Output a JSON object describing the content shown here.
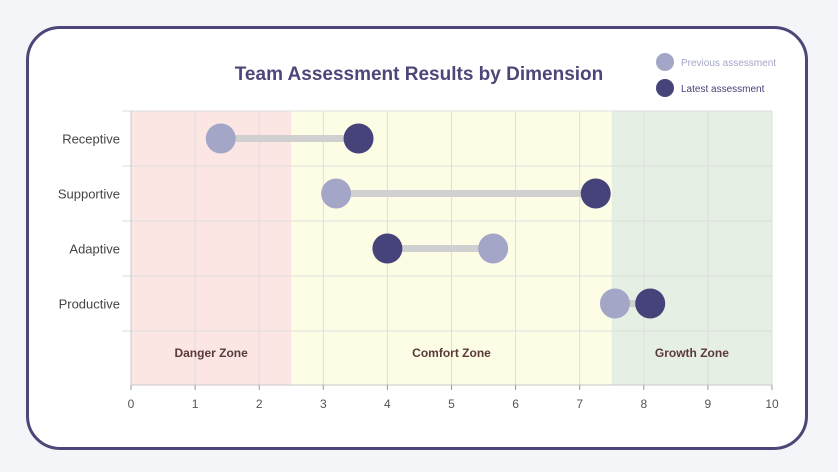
{
  "chart_data": {
    "type": "dumbbell",
    "title": "Team Assessment Results by Dimension",
    "xlim": [
      0,
      10
    ],
    "xticks": [
      0,
      1,
      2,
      3,
      4,
      5,
      6,
      7,
      8,
      9,
      10
    ],
    "categories": [
      "Receptive",
      "Supportive",
      "Adaptive",
      "Productive"
    ],
    "series": [
      {
        "name": "Previous assessment",
        "values": [
          1.4,
          3.2,
          5.65,
          7.55
        ],
        "color": "#a4a6c8"
      },
      {
        "name": "Latest assessment",
        "values": [
          3.55,
          7.25,
          4.0,
          8.1
        ],
        "color": "#45437a"
      }
    ],
    "zones": [
      {
        "label": "Danger Zone",
        "from": 0,
        "to": 2.5,
        "color": "#fbe6e4"
      },
      {
        "label": "Comfort Zone",
        "from": 2.5,
        "to": 7.5,
        "color": "#fdfde6"
      },
      {
        "label": "Growth Zone",
        "from": 7.5,
        "to": 10,
        "color": "#e6efe3"
      }
    ],
    "connector_color": "#d0d0d0",
    "legend_position": "top-right"
  }
}
